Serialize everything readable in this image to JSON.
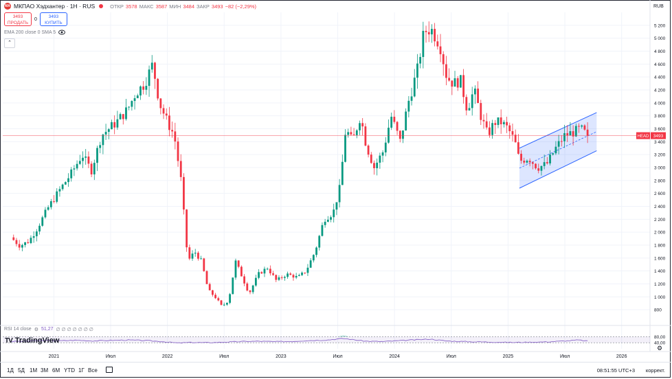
{
  "header": {
    "logo_text": "MA",
    "symbol": "МКПАО Хэдхантер · 1H · RUS",
    "ohlc": [
      {
        "label": "ОТКР",
        "value": "3578"
      },
      {
        "label": "МАКС",
        "value": "3587"
      },
      {
        "label": "МИН",
        "value": "3484"
      },
      {
        "label": "ЗАКР",
        "value": "3493"
      }
    ],
    "change": "−82 (−2,29%)"
  },
  "trade": {
    "sell_price": "3493",
    "sell_label": "ПРОДАТЬ",
    "spread": "0",
    "buy_price": "3493",
    "buy_label": "КУПИТЬ"
  },
  "indicators": {
    "ema": "EMA 200 close 0 SMA 5",
    "collapse_icon": "chevron-up"
  },
  "rsi": {
    "label": "RSI 14 close",
    "value": "51,27",
    "extra": "∅ ∅ ∅ ∅ ∅ ∅ ∅"
  },
  "brand": {
    "name": "TradingView",
    "mark": "TV"
  },
  "currency": "RUB",
  "price_badge": {
    "label": "HEAD",
    "value": "3493"
  },
  "bottom": {
    "timeframes": [
      "1Д",
      "5Д",
      "1М",
      "3М",
      "6М",
      "YTD",
      "1Г",
      "Все"
    ],
    "calendar_icon": "calendar",
    "clock": "08:51:55 UTC+3",
    "adjust": "коррект.",
    "settings_icon": "gear"
  },
  "colors": {
    "up": "#089981",
    "down": "#f23645",
    "rsi": "#7e57c2",
    "channel": "#2962ff"
  },
  "chart_data": {
    "type": "candlestick",
    "ylim": [
      600,
      5400
    ],
    "y_ticks": [
      800,
      1000,
      1200,
      1400,
      1600,
      1800,
      2000,
      2200,
      2400,
      2600,
      2800,
      3000,
      3200,
      3400,
      3600,
      3800,
      4000,
      4200,
      4400,
      4600,
      4800,
      5000,
      5200
    ],
    "x_ticks": [
      {
        "label": "2021",
        "t": 2021.0
      },
      {
        "label": "Июл",
        "t": 2021.5
      },
      {
        "label": "2022",
        "t": 2022.0
      },
      {
        "label": "Июл",
        "t": 2022.5
      },
      {
        "label": "2023",
        "t": 2023.0
      },
      {
        "label": "Июл",
        "t": 2023.5
      },
      {
        "label": "2024",
        "t": 2024.0
      },
      {
        "label": "Июл",
        "t": 2024.5
      },
      {
        "label": "2025",
        "t": 2025.0
      },
      {
        "label": "Июл",
        "t": 2025.5
      },
      {
        "label": "2026",
        "t": 2026.0
      }
    ],
    "x_range": [
      2020.55,
      2026.25
    ],
    "last_price": 3493,
    "price_path": [
      [
        2020.62,
        1920
      ],
      [
        2020.7,
        1790
      ],
      [
        2020.78,
        1860
      ],
      [
        2020.85,
        2050
      ],
      [
        2020.95,
        2380
      ],
      [
        2021.05,
        2650
      ],
      [
        2021.15,
        2900
      ],
      [
        2021.25,
        3200
      ],
      [
        2021.33,
        2950
      ],
      [
        2021.42,
        3500
      ],
      [
        2021.55,
        3700
      ],
      [
        2021.65,
        3900
      ],
      [
        2021.72,
        4150
      ],
      [
        2021.8,
        4300
      ],
      [
        2021.87,
        4600
      ],
      [
        2021.93,
        4000
      ],
      [
        2022.0,
        3700
      ],
      [
        2022.06,
        3500
      ],
      [
        2022.12,
        2800
      ],
      [
        2022.18,
        1550
      ],
      [
        2022.24,
        1700
      ],
      [
        2022.3,
        1550
      ],
      [
        2022.36,
        1100
      ],
      [
        2022.42,
        1000
      ],
      [
        2022.48,
        850
      ],
      [
        2022.54,
        950
      ],
      [
        2022.6,
        1550
      ],
      [
        2022.66,
        1300
      ],
      [
        2022.72,
        1050
      ],
      [
        2022.8,
        1350
      ],
      [
        2022.88,
        1450
      ],
      [
        2022.96,
        1250
      ],
      [
        2023.05,
        1350
      ],
      [
        2023.15,
        1300
      ],
      [
        2023.22,
        1400
      ],
      [
        2023.3,
        1700
      ],
      [
        2023.38,
        2200
      ],
      [
        2023.46,
        2300
      ],
      [
        2023.52,
        2700
      ],
      [
        2023.57,
        3600
      ],
      [
        2023.63,
        3400
      ],
      [
        2023.7,
        3800
      ],
      [
        2023.75,
        3350
      ],
      [
        2023.82,
        3000
      ],
      [
        2023.9,
        3250
      ],
      [
        2023.97,
        3800
      ],
      [
        2024.05,
        3400
      ],
      [
        2024.12,
        4000
      ],
      [
        2024.2,
        4500
      ],
      [
        2024.26,
        5100
      ],
      [
        2024.32,
        5150
      ],
      [
        2024.4,
        4900
      ],
      [
        2024.46,
        4400
      ],
      [
        2024.52,
        4300
      ],
      [
        2024.58,
        4350
      ],
      [
        2024.64,
        3900
      ],
      [
        2024.7,
        4200
      ],
      [
        2024.76,
        3800
      ],
      [
        2024.82,
        3500
      ],
      [
        2024.88,
        3700
      ],
      [
        2024.94,
        3700
      ],
      [
        2025.0,
        3600
      ],
      [
        2025.06,
        3400
      ],
      [
        2025.1,
        3100
      ],
      [
        2025.18,
        3150
      ],
      [
        2025.26,
        3000
      ],
      [
        2025.34,
        3050
      ],
      [
        2025.42,
        3300
      ],
      [
        2025.5,
        3500
      ],
      [
        2025.58,
        3550
      ],
      [
        2025.64,
        3600
      ],
      [
        2025.7,
        3493
      ]
    ],
    "rsi_range": [
      0,
      100
    ],
    "rsi_levels": [
      40,
      80
    ],
    "rsi_level_labels": [
      "40,00",
      "80,00"
    ],
    "rsi_path": [
      [
        2020.62,
        48
      ],
      [
        2020.75,
        50
      ],
      [
        2020.9,
        55
      ],
      [
        2021.05,
        53
      ],
      [
        2021.2,
        57
      ],
      [
        2021.35,
        52
      ],
      [
        2021.5,
        56
      ],
      [
        2021.65,
        58
      ],
      [
        2021.8,
        55
      ],
      [
        2021.95,
        48
      ],
      [
        2022.1,
        38
      ],
      [
        2022.2,
        42
      ],
      [
        2022.35,
        40
      ],
      [
        2022.5,
        44
      ],
      [
        2022.65,
        48
      ],
      [
        2022.8,
        50
      ],
      [
        2022.95,
        47
      ],
      [
        2023.1,
        49
      ],
      [
        2023.25,
        55
      ],
      [
        2023.4,
        58
      ],
      [
        2023.55,
        68
      ],
      [
        2023.62,
        62
      ],
      [
        2023.75,
        50
      ],
      [
        2023.9,
        48
      ],
      [
        2024.05,
        54
      ],
      [
        2024.2,
        60
      ],
      [
        2024.32,
        64
      ],
      [
        2024.45,
        52
      ],
      [
        2024.6,
        48
      ],
      [
        2024.75,
        46
      ],
      [
        2024.9,
        44
      ],
      [
        2025.05,
        42
      ],
      [
        2025.2,
        44
      ],
      [
        2025.35,
        46
      ],
      [
        2025.5,
        52
      ],
      [
        2025.62,
        58
      ],
      [
        2025.7,
        51
      ]
    ],
    "channel": {
      "upper": [
        [
          2025.1,
          3300
        ],
        [
          2025.78,
          3850
        ]
      ],
      "lower": [
        [
          2025.1,
          2680
        ],
        [
          2025.78,
          3260
        ]
      ],
      "mid": [
        [
          2025.1,
          2990
        ],
        [
          2025.78,
          3555
        ]
      ]
    }
  }
}
